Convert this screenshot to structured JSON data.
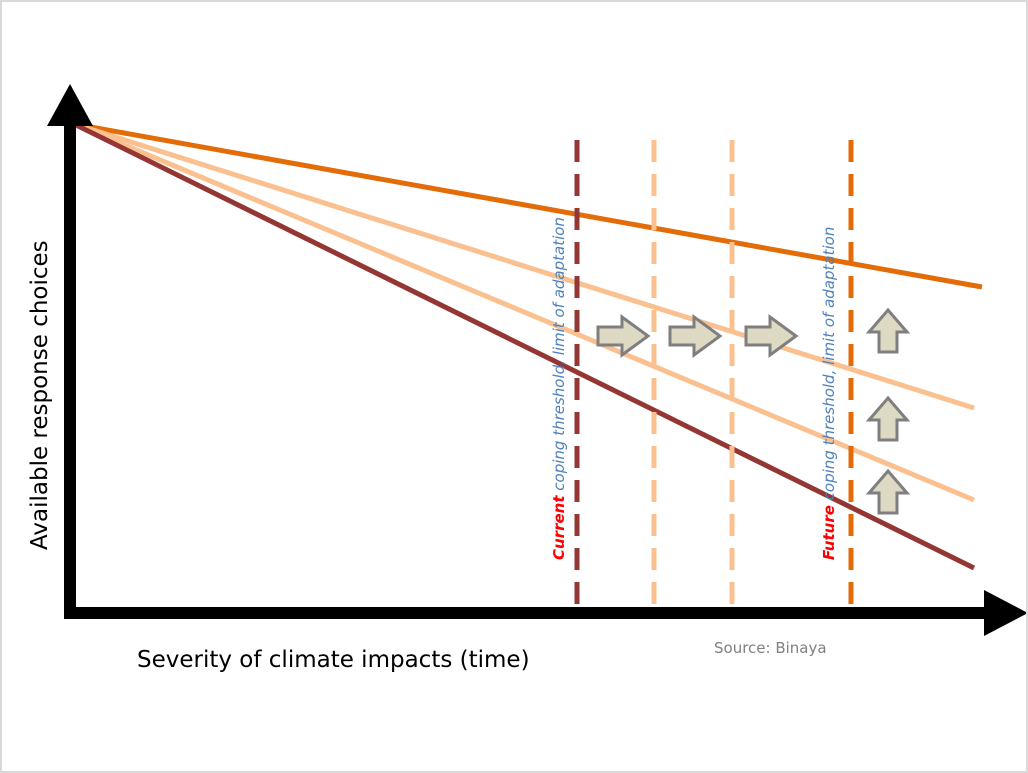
{
  "diagram": {
    "y_axis_label": "Available response choices",
    "x_axis_label": "Severity of climate impacts (time)",
    "source": "Source: Binaya",
    "current_threshold": {
      "emphasis": "Current",
      "rest": " coping threshold, limit of adaptation"
    },
    "future_threshold": {
      "emphasis": "Future",
      "rest": " coping threshold, limit of adaptation"
    },
    "colors": {
      "axis": "#000000",
      "dark_line": "#943634",
      "orange_line": "#E36C09",
      "light_line": "#FAC090",
      "arrow_fill": "#DDD9C3",
      "arrow_stroke": "#7F7F7F",
      "emphasis_text": "#FF0000",
      "label_text": "#4F81BD",
      "source_text": "#808080"
    },
    "icons": {
      "right_arrow": "arrow-right-icon",
      "up_arrow": "arrow-up-icon"
    }
  }
}
